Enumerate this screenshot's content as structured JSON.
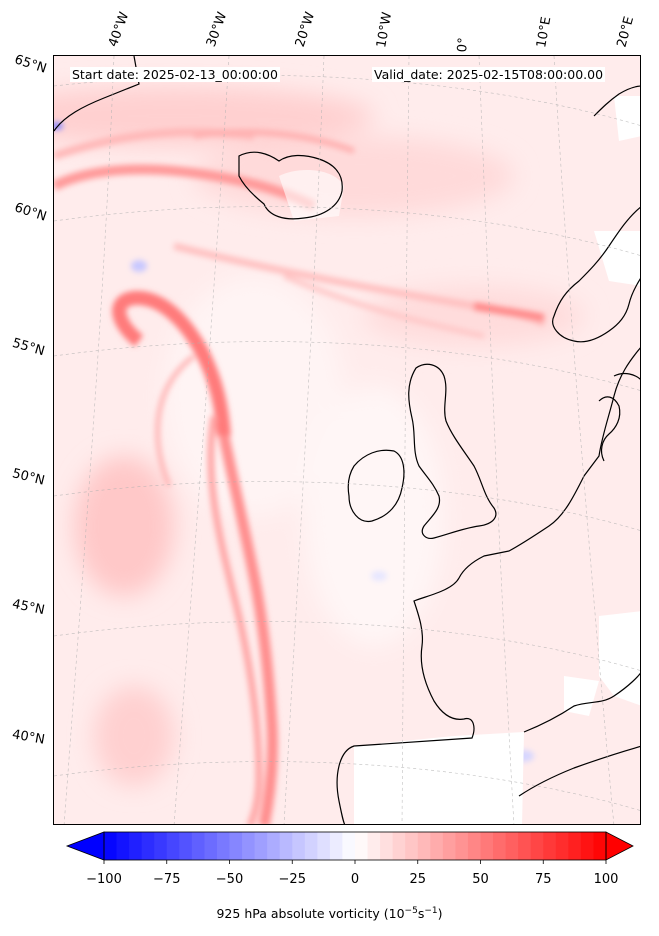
{
  "header": {
    "start_date": "Start date: 2025-02-13_00:00:00",
    "valid_date": "Valid_date: 2025-02-15T08:00:00.00"
  },
  "lon_labels": [
    "40°W",
    "30°W",
    "20°W",
    "10°W",
    "0°",
    "10°E",
    "20°E"
  ],
  "lat_labels": [
    "65°N",
    "60°N",
    "55°N",
    "50°N",
    "45°N",
    "40°N"
  ],
  "colorbar": {
    "ticks": [
      "−100",
      "−75",
      "−50",
      "−25",
      "0",
      "25",
      "50",
      "75",
      "100"
    ],
    "label_main": "925 hPa absolute vorticity (10",
    "label_exp1": "−5",
    "label_mid": "s",
    "label_exp2": "−1",
    "label_end": ")",
    "low_color": "#0000ff",
    "mid_color": "#ffffff",
    "high_color": "#ff0000",
    "min": -100,
    "max": 100,
    "levels": 40
  },
  "map": {
    "background_color": "#fff0f0",
    "land_outline_color": "#000000"
  }
}
